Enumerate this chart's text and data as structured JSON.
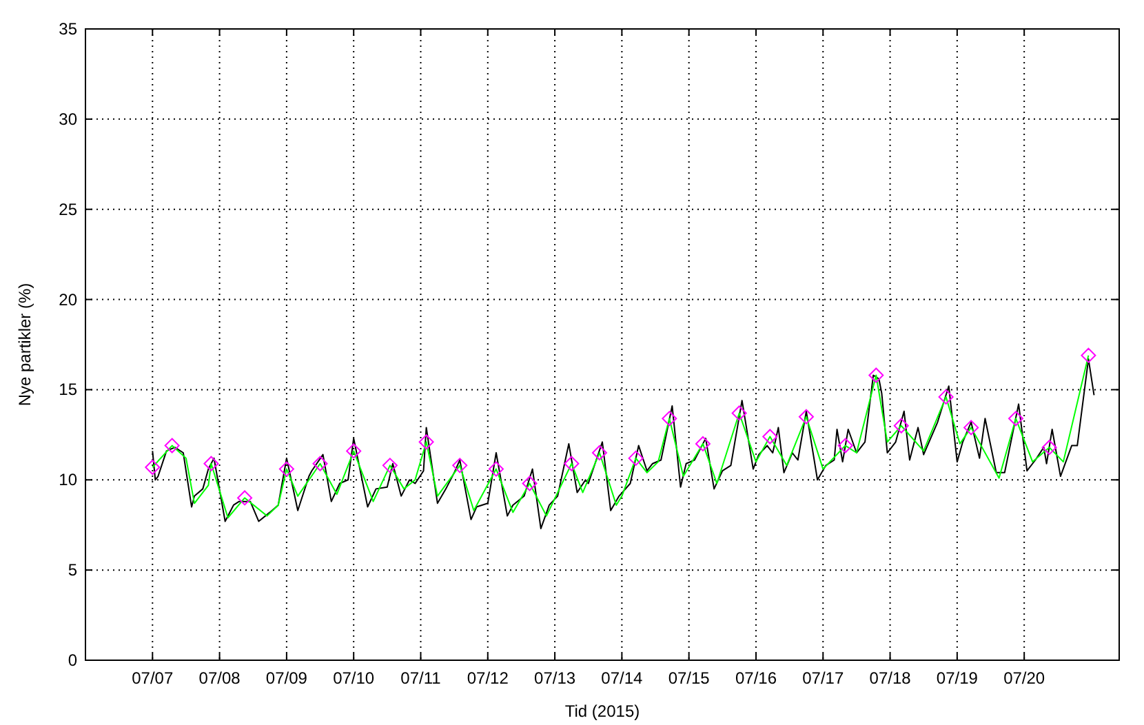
{
  "chart_data": {
    "type": "line",
    "xlabel": "Tid (2015)",
    "ylabel": "Nye partikler (%)",
    "xlim": [
      "2015-07-06T00:00",
      "2015-07-21T10:00"
    ],
    "xticks": [
      {
        "value": "2015-07-07T00:00",
        "label": "07/07"
      },
      {
        "value": "2015-07-08T00:00",
        "label": "07/08"
      },
      {
        "value": "2015-07-09T00:00",
        "label": "07/09"
      },
      {
        "value": "2015-07-10T00:00",
        "label": "07/10"
      },
      {
        "value": "2015-07-11T00:00",
        "label": "07/11"
      },
      {
        "value": "2015-07-12T00:00",
        "label": "07/12"
      },
      {
        "value": "2015-07-13T00:00",
        "label": "07/13"
      },
      {
        "value": "2015-07-14T00:00",
        "label": "07/14"
      },
      {
        "value": "2015-07-15T00:00",
        "label": "07/15"
      },
      {
        "value": "2015-07-16T00:00",
        "label": "07/16"
      },
      {
        "value": "2015-07-17T00:00",
        "label": "07/17"
      },
      {
        "value": "2015-07-18T00:00",
        "label": "07/18"
      },
      {
        "value": "2015-07-19T00:00",
        "label": "07/19"
      },
      {
        "value": "2015-07-20T00:00",
        "label": "07/20"
      }
    ],
    "ylim": [
      0,
      35
    ],
    "yticks": [
      0,
      5,
      10,
      15,
      20,
      25,
      30,
      35
    ],
    "grid": true,
    "series": [
      {
        "marker": "none",
        "color": "#000000",
        "x": [
          "2015-07-07T00:00",
          "2015-07-07T01:00",
          "2015-07-07T02:00",
          "2015-07-07T05:00",
          "2015-07-07T08:00",
          "2015-07-07T11:00",
          "2015-07-07T14:00",
          "2015-07-07T15:00",
          "2015-07-07T18:00",
          "2015-07-07T20:00",
          "2015-07-07T22:00",
          "2015-07-08T02:00",
          "2015-07-08T05:00",
          "2015-07-08T07:00",
          "2015-07-08T11:00",
          "2015-07-08T14:00",
          "2015-07-08T18:00",
          "2015-07-08T21:00",
          "2015-07-09T00:00",
          "2015-07-09T04:00",
          "2015-07-09T08:00",
          "2015-07-09T09:00",
          "2015-07-09T13:00",
          "2015-07-09T16:00",
          "2015-07-09T19:00",
          "2015-07-09T22:00",
          "2015-07-10T00:00",
          "2015-07-10T05:00",
          "2015-07-10T08:00",
          "2015-07-10T12:00",
          "2015-07-10T14:00",
          "2015-07-10T17:00",
          "2015-07-10T20:00",
          "2015-07-10T22:00",
          "2015-07-11T01:00",
          "2015-07-11T02:00",
          "2015-07-11T06:00",
          "2015-07-11T09:00",
          "2015-07-11T12:00",
          "2015-07-11T14:00",
          "2015-07-11T18:00",
          "2015-07-11T20:00",
          "2015-07-12T00:00",
          "2015-07-12T03:00",
          "2015-07-12T07:00",
          "2015-07-12T09:00",
          "2015-07-12T13:00",
          "2015-07-12T16:00",
          "2015-07-12T19:00",
          "2015-07-12T22:00",
          "2015-07-13T01:00",
          "2015-07-13T05:00",
          "2015-07-13T08:00",
          "2015-07-13T11:00",
          "2015-07-13T12:00",
          "2015-07-13T17:00",
          "2015-07-13T20:00",
          "2015-07-13T23:00",
          "2015-07-14T03:00",
          "2015-07-14T06:00",
          "2015-07-14T09:00",
          "2015-07-14T11:00",
          "2015-07-14T14:00",
          "2015-07-14T18:00",
          "2015-07-14T21:00",
          "2015-07-14T23:00",
          "2015-07-15T02:00",
          "2015-07-15T06:00",
          "2015-07-15T09:00",
          "2015-07-15T12:00",
          "2015-07-15T15:00",
          "2015-07-15T19:00",
          "2015-07-15T23:00",
          "2015-07-16T01:00",
          "2015-07-16T04:00",
          "2015-07-16T06:00",
          "2015-07-16T08:00",
          "2015-07-16T10:00",
          "2015-07-16T13:00",
          "2015-07-16T15:00",
          "2015-07-16T18:00",
          "2015-07-16T22:00",
          "2015-07-17T01:00",
          "2015-07-17T04:00",
          "2015-07-17T05:00",
          "2015-07-17T07:00",
          "2015-07-17T09:00",
          "2015-07-17T12:00",
          "2015-07-17T15:00",
          "2015-07-17T18:00",
          "2015-07-17T20:00",
          "2015-07-17T21:00",
          "2015-07-17T23:00",
          "2015-07-18T02:00",
          "2015-07-18T05:00",
          "2015-07-18T07:00",
          "2015-07-18T10:00",
          "2015-07-18T12:00",
          "2015-07-18T17:00",
          "2015-07-18T21:00",
          "2015-07-19T00:00",
          "2015-07-19T02:00",
          "2015-07-19T05:00",
          "2015-07-19T08:00",
          "2015-07-19T10:00",
          "2015-07-19T14:00",
          "2015-07-19T17:00",
          "2015-07-19T22:00",
          "2015-07-20T01:00",
          "2015-07-20T04:00",
          "2015-07-20T07:00",
          "2015-07-20T08:00",
          "2015-07-20T10:00",
          "2015-07-20T13:00",
          "2015-07-20T17:00",
          "2015-07-20T19:00",
          "2015-07-20T23:00",
          "2015-07-21T01:00"
        ],
        "values": [
          11.6,
          10.0,
          10.2,
          11.6,
          11.8,
          11.5,
          8.5,
          9.1,
          9.5,
          10.6,
          11.2,
          7.7,
          8.6,
          8.8,
          8.8,
          7.7,
          8.2,
          8.6,
          11.2,
          8.3,
          10.2,
          10.5,
          11.4,
          8.8,
          9.8,
          10.0,
          12.3,
          8.5,
          9.5,
          9.6,
          10.9,
          9.1,
          10.0,
          9.8,
          10.5,
          12.9,
          8.7,
          9.5,
          10.4,
          11.1,
          7.8,
          8.5,
          8.7,
          11.5,
          8.0,
          8.6,
          9.1,
          10.6,
          7.3,
          8.6,
          9.1,
          12.0,
          9.3,
          10.0,
          9.8,
          12.1,
          8.3,
          9.1,
          9.8,
          11.9,
          10.5,
          10.9,
          11.1,
          14.1,
          9.6,
          10.9,
          11.1,
          12.3,
          9.5,
          10.5,
          10.8,
          14.4,
          10.6,
          11.4,
          11.9,
          11.5,
          12.9,
          10.4,
          11.5,
          11.1,
          13.8,
          10.0,
          10.8,
          11.1,
          12.8,
          11.0,
          12.8,
          11.5,
          12.1,
          15.8,
          15.6,
          14.8,
          11.5,
          12.1,
          13.8,
          11.1,
          12.9,
          11.4,
          13.2,
          15.2,
          11.0,
          12.1,
          13.2,
          11.2,
          13.4,
          10.4,
          10.4,
          14.2,
          10.5,
          11.1,
          11.8,
          10.9,
          12.8,
          10.2,
          11.9,
          11.9,
          16.7,
          14.7
        ]
      },
      {
        "marker": "none",
        "color": "#00ff00",
        "x": [
          "2015-07-07T00:00",
          "2015-07-07T07:00",
          "2015-07-07T12:00",
          "2015-07-07T15:00",
          "2015-07-07T20:00",
          "2015-07-07T21:00",
          "2015-07-08T03:00",
          "2015-07-08T09:00",
          "2015-07-08T17:00",
          "2015-07-08T21:00",
          "2015-07-09T00:00",
          "2015-07-09T04:00",
          "2015-07-09T12:00",
          "2015-07-09T18:00",
          "2015-07-10T00:00",
          "2015-07-10T07:00",
          "2015-07-10T13:00",
          "2015-07-10T18:00",
          "2015-07-10T22:00",
          "2015-07-11T02:00",
          "2015-07-11T06:00",
          "2015-07-11T14:00",
          "2015-07-11T19:00",
          "2015-07-12T03:00",
          "2015-07-12T09:00",
          "2015-07-12T15:00",
          "2015-07-12T21:00",
          "2015-07-13T06:00",
          "2015-07-13T10:00",
          "2015-07-13T16:00",
          "2015-07-13T22:00",
          "2015-07-14T00:00",
          "2015-07-14T05:00",
          "2015-07-14T09:00",
          "2015-07-14T13:00",
          "2015-07-14T17:00",
          "2015-07-14T22:00",
          "2015-07-15T05:00",
          "2015-07-15T10:00",
          "2015-07-15T18:00",
          "2015-07-16T00:00",
          "2015-07-16T05:00",
          "2015-07-16T11:00",
          "2015-07-16T18:00",
          "2015-07-17T00:00",
          "2015-07-17T08:00",
          "2015-07-17T12:00",
          "2015-07-17T19:00",
          "2015-07-17T23:00",
          "2015-07-18T04:00",
          "2015-07-18T12:00",
          "2015-07-18T20:00",
          "2015-07-19T01:00",
          "2015-07-19T05:00",
          "2015-07-19T15:00",
          "2015-07-19T21:00",
          "2015-07-20T03:00",
          "2015-07-20T09:00",
          "2015-07-20T14:00",
          "2015-07-20T23:00"
        ],
        "values": [
          10.7,
          11.9,
          11.2,
          8.7,
          9.7,
          10.9,
          7.9,
          9.0,
          8.0,
          8.6,
          10.6,
          9.1,
          10.9,
          9.2,
          11.6,
          8.8,
          10.8,
          9.5,
          10.0,
          12.1,
          9.1,
          10.8,
          8.3,
          10.6,
          8.2,
          9.8,
          8.0,
          10.9,
          9.3,
          11.5,
          8.6,
          9.1,
          11.2,
          10.4,
          11.0,
          13.4,
          10.2,
          12.0,
          9.8,
          13.7,
          11.0,
          12.4,
          10.8,
          13.5,
          10.6,
          11.9,
          11.5,
          15.8,
          12.1,
          13.0,
          11.6,
          14.6,
          12.0,
          12.9,
          10.1,
          13.4,
          11.0,
          11.8,
          11.0,
          16.9
        ]
      },
      {
        "type": "scatter",
        "marker": "diamond",
        "color": "#ff00ff",
        "x": [
          "2015-07-07T00:00",
          "2015-07-07T07:00",
          "2015-07-07T21:00",
          "2015-07-08T09:00",
          "2015-07-09T00:00",
          "2015-07-09T12:00",
          "2015-07-10T00:00",
          "2015-07-10T13:00",
          "2015-07-11T02:00",
          "2015-07-11T14:00",
          "2015-07-12T03:00",
          "2015-07-12T15:00",
          "2015-07-13T06:00",
          "2015-07-13T16:00",
          "2015-07-14T05:00",
          "2015-07-14T17:00",
          "2015-07-15T05:00",
          "2015-07-15T18:00",
          "2015-07-16T05:00",
          "2015-07-16T18:00",
          "2015-07-17T08:00",
          "2015-07-17T19:00",
          "2015-07-18T04:00",
          "2015-07-18T20:00",
          "2015-07-19T05:00",
          "2015-07-19T21:00",
          "2015-07-20T09:00",
          "2015-07-20T23:00"
        ],
        "values": [
          10.7,
          11.9,
          10.9,
          9.0,
          10.6,
          10.9,
          11.6,
          10.8,
          12.1,
          10.8,
          10.6,
          9.8,
          10.9,
          11.5,
          11.2,
          13.4,
          12.0,
          13.7,
          12.4,
          13.5,
          11.9,
          15.8,
          13.0,
          14.6,
          12.9,
          13.4,
          11.8,
          16.9
        ]
      }
    ]
  }
}
